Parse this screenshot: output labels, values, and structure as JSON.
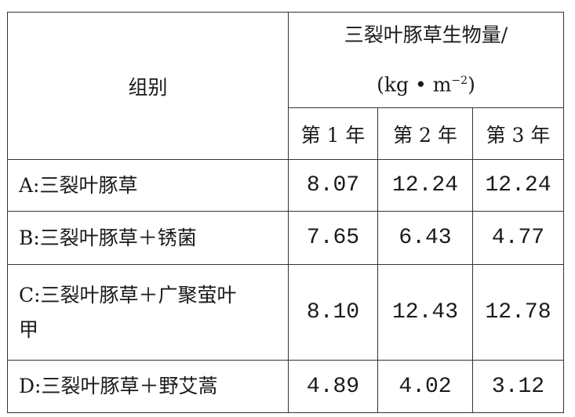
{
  "table": {
    "group_header": "组别",
    "biomass_header": "三裂叶豚草生物量/",
    "unit_prefix": "(kg • m",
    "unit_exponent": "−2",
    "unit_suffix": ")",
    "years": [
      "第 1 年",
      "第 2 年",
      "第 3 年"
    ],
    "rows": [
      {
        "group": "A:三裂叶豚草",
        "values": [
          "8.07",
          "12.24",
          "12.24"
        ]
      },
      {
        "group": "B:三裂叶豚草＋锈菌",
        "values": [
          "7.65",
          "6.43",
          "4.77"
        ]
      },
      {
        "group": "C:三裂叶豚草＋广聚萤叶甲",
        "values": [
          "8.10",
          "12.43",
          "12.78"
        ]
      },
      {
        "group": "D:三裂叶豚草＋野艾蒿",
        "values": [
          "4.89",
          "4.02",
          "3.12"
        ]
      }
    ]
  }
}
